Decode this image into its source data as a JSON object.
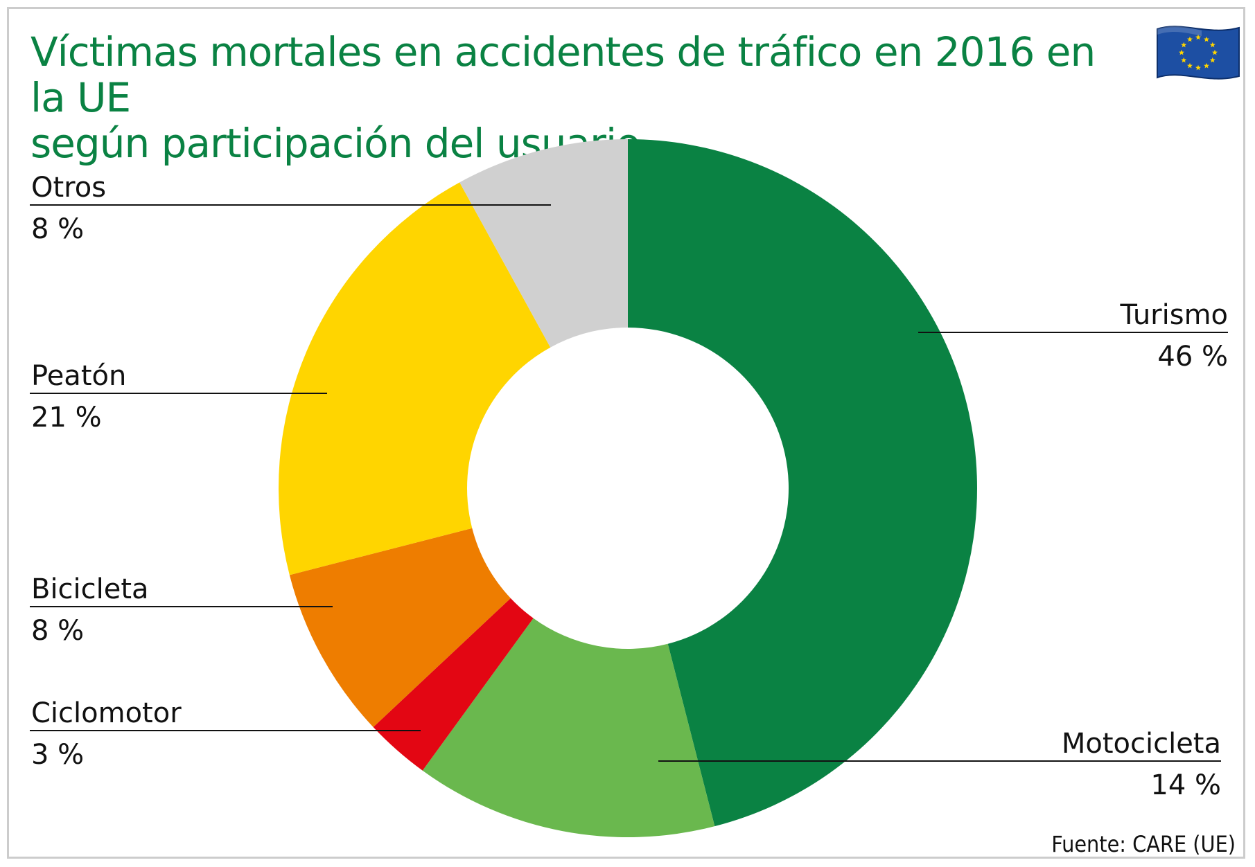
{
  "title": {
    "line1": "Víctimas mortales en accidentes de tráfico en 2016 en la UE",
    "line2": "según participación del usuario"
  },
  "source": "Fuente: CARE (UE)",
  "flag_icon": "eu-flag-icon",
  "chart_data": {
    "type": "pie",
    "donut": true,
    "title": "Víctimas mortales en accidentes de tráfico en 2016 en la UE según participación del usuario",
    "start": "top, clockwise",
    "slices": [
      {
        "label": "Turismo",
        "value": 46,
        "value_label": "46 %",
        "color": "#0a8243"
      },
      {
        "label": "Motocicleta",
        "value": 14,
        "value_label": "14 %",
        "color": "#6ab84e"
      },
      {
        "label": "Ciclomotor",
        "value": 3,
        "value_label": "3 %",
        "color": "#e30613"
      },
      {
        "label": "Bicicleta",
        "value": 8,
        "value_label": "8 %",
        "color": "#ee7d00"
      },
      {
        "label": "Peatón",
        "value": 21,
        "value_label": "21 %",
        "color": "#ffd500"
      },
      {
        "label": "Otros",
        "value": 8,
        "value_label": "8 %",
        "color": "#d0d0d0"
      }
    ]
  }
}
